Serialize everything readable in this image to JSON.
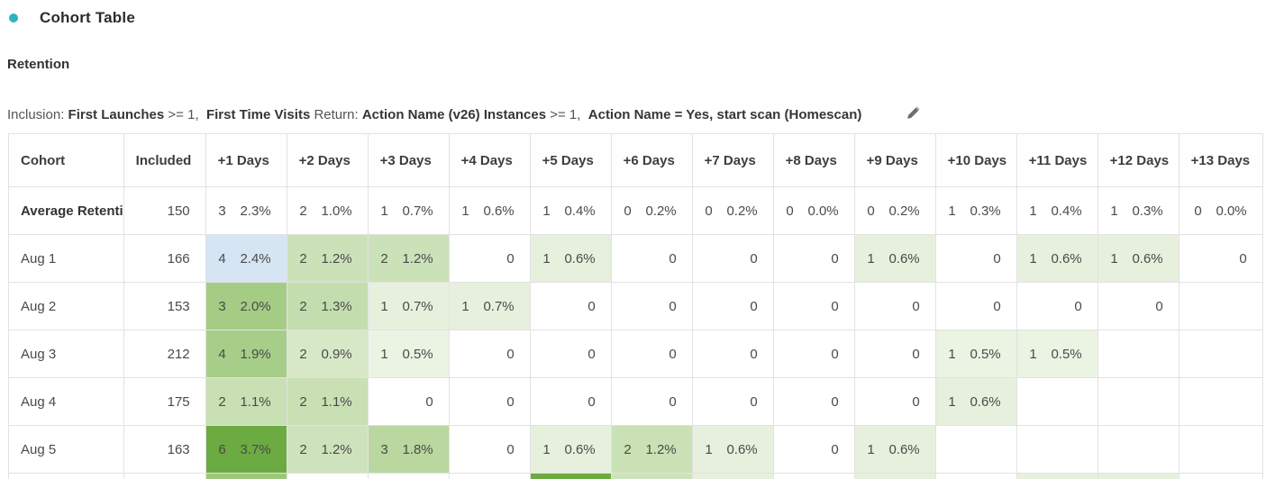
{
  "panel": {
    "bullet_color": "#2bb3c2",
    "title": "Cohort Table",
    "subtitle": "Retention"
  },
  "criteria": {
    "segments": [
      {
        "text": "Inclusion: ",
        "bold": false
      },
      {
        "text": "First Launches",
        "bold": true
      },
      {
        "text": " >= 1,  ",
        "bold": false
      },
      {
        "text": "First Time Visits",
        "bold": true
      },
      {
        "text": " Return: ",
        "bold": false
      },
      {
        "text": "Action Name (v26) Instances",
        "bold": true
      },
      {
        "text": " >= 1,  ",
        "bold": false
      },
      {
        "text": "Action Name = Yes, start scan (Homescan)",
        "bold": true
      }
    ],
    "edit_icon": "pencil-icon",
    "edit_icon_color": "#6e6e6e"
  },
  "table": {
    "columns": [
      "Cohort",
      "Included",
      "+1 Days",
      "+2 Days",
      "+3 Days",
      "+4 Days",
      "+5 Days",
      "+6 Days",
      "+7 Days",
      "+8 Days",
      "+9 Days",
      "+10 Days",
      "+11 Days",
      "+12 Days",
      "+13 Days"
    ],
    "heat_colors": {
      "selected_blue": "#d5e5f3",
      "strong_green": "#6caa42",
      "medium_green": "#a5cc84",
      "light_green": "#cbe2b8",
      "faint_green": "#e7f0dd"
    },
    "rows": [
      {
        "label": "Average Retenti",
        "bold": true,
        "included": "150",
        "partial": false,
        "cells": [
          {
            "c": "3",
            "p": "2.3%",
            "bg": ""
          },
          {
            "c": "2",
            "p": "1.0%",
            "bg": ""
          },
          {
            "c": "1",
            "p": "0.7%",
            "bg": ""
          },
          {
            "c": "1",
            "p": "0.6%",
            "bg": ""
          },
          {
            "c": "1",
            "p": "0.4%",
            "bg": ""
          },
          {
            "c": "0",
            "p": "0.2%",
            "bg": ""
          },
          {
            "c": "0",
            "p": "0.2%",
            "bg": ""
          },
          {
            "c": "0",
            "p": "0.0%",
            "bg": ""
          },
          {
            "c": "0",
            "p": "0.2%",
            "bg": ""
          },
          {
            "c": "1",
            "p": "0.3%",
            "bg": ""
          },
          {
            "c": "1",
            "p": "0.4%",
            "bg": ""
          },
          {
            "c": "1",
            "p": "0.3%",
            "bg": ""
          },
          {
            "c": "0",
            "p": "0.0%",
            "bg": ""
          }
        ]
      },
      {
        "label": "Aug 1",
        "bold": false,
        "included": "166",
        "partial": false,
        "cells": [
          {
            "c": "4",
            "p": "2.4%",
            "bg": "#d5e5f3"
          },
          {
            "c": "2",
            "p": "1.2%",
            "bg": "#cbe2b8"
          },
          {
            "c": "2",
            "p": "1.2%",
            "bg": "#cbe2b8"
          },
          {
            "c": "0",
            "p": "",
            "bg": ""
          },
          {
            "c": "1",
            "p": "0.6%",
            "bg": "#e7f0dd"
          },
          {
            "c": "0",
            "p": "",
            "bg": ""
          },
          {
            "c": "0",
            "p": "",
            "bg": ""
          },
          {
            "c": "0",
            "p": "",
            "bg": ""
          },
          {
            "c": "1",
            "p": "0.6%",
            "bg": "#e7f0dd"
          },
          {
            "c": "0",
            "p": "",
            "bg": ""
          },
          {
            "c": "1",
            "p": "0.6%",
            "bg": "#e7f0dd"
          },
          {
            "c": "1",
            "p": "0.6%",
            "bg": "#e7f0dd"
          },
          {
            "c": "0",
            "p": "",
            "bg": ""
          }
        ]
      },
      {
        "label": "Aug 2",
        "bold": false,
        "included": "153",
        "partial": false,
        "cells": [
          {
            "c": "3",
            "p": "2.0%",
            "bg": "#a5cc84"
          },
          {
            "c": "2",
            "p": "1.3%",
            "bg": "#c4ddaf"
          },
          {
            "c": "1",
            "p": "0.7%",
            "bg": "#e7f0dd"
          },
          {
            "c": "1",
            "p": "0.7%",
            "bg": "#e7f0dd"
          },
          {
            "c": "0",
            "p": "",
            "bg": ""
          },
          {
            "c": "0",
            "p": "",
            "bg": ""
          },
          {
            "c": "0",
            "p": "",
            "bg": ""
          },
          {
            "c": "0",
            "p": "",
            "bg": ""
          },
          {
            "c": "0",
            "p": "",
            "bg": ""
          },
          {
            "c": "0",
            "p": "",
            "bg": ""
          },
          {
            "c": "0",
            "p": "",
            "bg": ""
          },
          {
            "c": "0",
            "p": "",
            "bg": ""
          },
          {
            "c": "",
            "p": "",
            "bg": ""
          }
        ]
      },
      {
        "label": "Aug 3",
        "bold": false,
        "included": "212",
        "partial": false,
        "cells": [
          {
            "c": "4",
            "p": "1.9%",
            "bg": "#a7ce88"
          },
          {
            "c": "2",
            "p": "0.9%",
            "bg": "#d7e8c7"
          },
          {
            "c": "1",
            "p": "0.5%",
            "bg": "#ebf3e3"
          },
          {
            "c": "0",
            "p": "",
            "bg": ""
          },
          {
            "c": "0",
            "p": "",
            "bg": ""
          },
          {
            "c": "0",
            "p": "",
            "bg": ""
          },
          {
            "c": "0",
            "p": "",
            "bg": ""
          },
          {
            "c": "0",
            "p": "",
            "bg": ""
          },
          {
            "c": "0",
            "p": "",
            "bg": ""
          },
          {
            "c": "1",
            "p": "0.5%",
            "bg": "#ebf3e3"
          },
          {
            "c": "1",
            "p": "0.5%",
            "bg": "#ebf3e3"
          },
          {
            "c": "",
            "p": "",
            "bg": ""
          },
          {
            "c": "",
            "p": "",
            "bg": ""
          }
        ]
      },
      {
        "label": "Aug 4",
        "bold": false,
        "included": "175",
        "partial": false,
        "cells": [
          {
            "c": "2",
            "p": "1.1%",
            "bg": "#c8e0b3"
          },
          {
            "c": "2",
            "p": "1.1%",
            "bg": "#c8e0b3"
          },
          {
            "c": "0",
            "p": "",
            "bg": ""
          },
          {
            "c": "0",
            "p": "",
            "bg": ""
          },
          {
            "c": "0",
            "p": "",
            "bg": ""
          },
          {
            "c": "0",
            "p": "",
            "bg": ""
          },
          {
            "c": "0",
            "p": "",
            "bg": ""
          },
          {
            "c": "0",
            "p": "",
            "bg": ""
          },
          {
            "c": "0",
            "p": "",
            "bg": ""
          },
          {
            "c": "1",
            "p": "0.6%",
            "bg": "#e7f0dd"
          },
          {
            "c": "",
            "p": "",
            "bg": ""
          },
          {
            "c": "",
            "p": "",
            "bg": ""
          },
          {
            "c": "",
            "p": "",
            "bg": ""
          }
        ]
      },
      {
        "label": "Aug 5",
        "bold": false,
        "included": "163",
        "partial": false,
        "cells": [
          {
            "c": "6",
            "p": "3.7%",
            "bg": "#6caa42"
          },
          {
            "c": "2",
            "p": "1.2%",
            "bg": "#cee3bd"
          },
          {
            "c": "3",
            "p": "1.8%",
            "bg": "#b9d79e"
          },
          {
            "c": "0",
            "p": "",
            "bg": ""
          },
          {
            "c": "1",
            "p": "0.6%",
            "bg": "#e7f0dd"
          },
          {
            "c": "2",
            "p": "1.2%",
            "bg": "#c9e1b5"
          },
          {
            "c": "1",
            "p": "0.6%",
            "bg": "#e7f0dd"
          },
          {
            "c": "0",
            "p": "",
            "bg": ""
          },
          {
            "c": "1",
            "p": "0.6%",
            "bg": "#e7f0dd"
          },
          {
            "c": "",
            "p": "",
            "bg": ""
          },
          {
            "c": "",
            "p": "",
            "bg": ""
          },
          {
            "c": "",
            "p": "",
            "bg": ""
          },
          {
            "c": "",
            "p": "",
            "bg": ""
          }
        ]
      },
      {
        "label": "",
        "bold": false,
        "included": "",
        "partial": true,
        "cells": [
          {
            "c": "",
            "p": "",
            "bg": "#9ec77c"
          },
          {
            "c": "",
            "p": "",
            "bg": ""
          },
          {
            "c": "",
            "p": "",
            "bg": ""
          },
          {
            "c": "",
            "p": "",
            "bg": ""
          },
          {
            "c": "",
            "p": "",
            "bg": "#6caa42"
          },
          {
            "c": "",
            "p": "",
            "bg": "#cde3bb"
          },
          {
            "c": "",
            "p": "",
            "bg": "#e7f0dd"
          },
          {
            "c": "",
            "p": "",
            "bg": ""
          },
          {
            "c": "",
            "p": "",
            "bg": "#e7f0dd"
          },
          {
            "c": "",
            "p": "",
            "bg": ""
          },
          {
            "c": "",
            "p": "",
            "bg": "#e7f0dd"
          },
          {
            "c": "",
            "p": "",
            "bg": "#e7f0dd"
          },
          {
            "c": "",
            "p": "",
            "bg": ""
          }
        ]
      }
    ]
  }
}
